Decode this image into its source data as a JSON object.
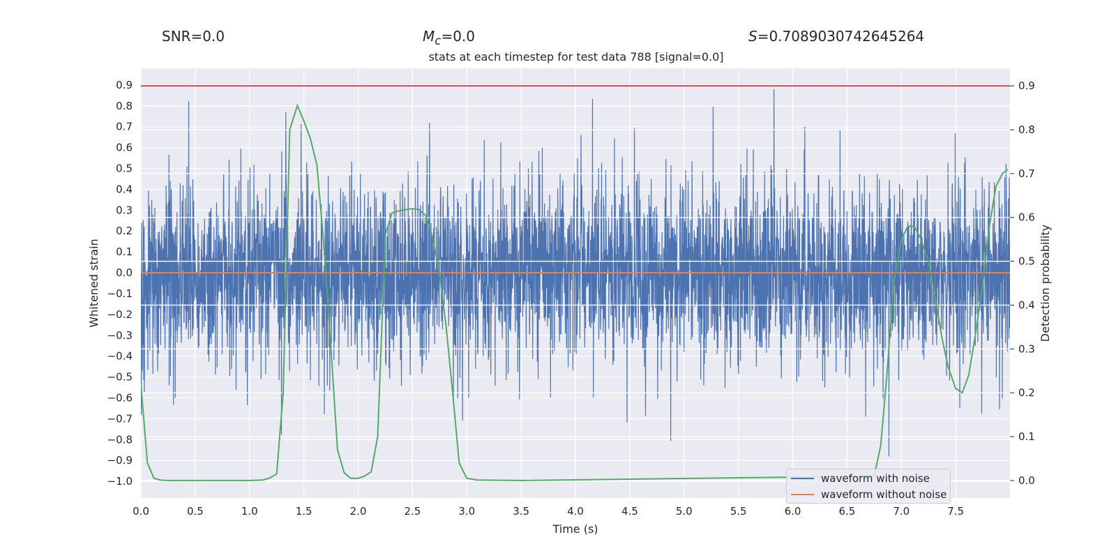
{
  "header": {
    "snr": "SNR=0.0",
    "mc_symbol": "M",
    "mc_sub": "c",
    "mc_value": "=0.0",
    "s_symbol": "S",
    "s_value": "=0.7089030742645264"
  },
  "chart_data": {
    "type": "line",
    "title": "stats at each timestep for test data 788 [signal=0.0]",
    "xlabel": "Time (s)",
    "ylabel": "Whitened strain",
    "y2label": "Detection probability",
    "xlim": [
      0.0,
      8.0
    ],
    "ylim": [
      -1.08,
      0.98
    ],
    "y2lim": [
      -0.04,
      0.94
    ],
    "xticks": [
      "0.0",
      "0.5",
      "1.0",
      "1.5",
      "2.0",
      "2.5",
      "3.0",
      "3.5",
      "4.0",
      "4.5",
      "5.0",
      "5.5",
      "6.0",
      "6.5",
      "7.0",
      "7.5"
    ],
    "yticks": [
      "0.9",
      "0.8",
      "0.7",
      "0.6",
      "0.5",
      "0.4",
      "0.3",
      "0.2",
      "0.1",
      "0.0",
      "-0.1",
      "-0.2",
      "-0.3",
      "-0.4",
      "-0.5",
      "-0.6",
      "-0.7",
      "-0.8",
      "-0.9",
      "-1.0"
    ],
    "y2ticks": [
      "0.9",
      "0.8",
      "0.7",
      "0.6",
      "0.5",
      "0.4",
      "0.3",
      "0.2",
      "0.1",
      "0.0"
    ],
    "threshold": 0.9,
    "series": [
      {
        "name": "waveform with noise",
        "axis": "left",
        "color": "#4c72b0",
        "description": "noise band, bulk about ±0.4, spikes to about ±0.87 (rendered procedurally)"
      },
      {
        "name": "waveform without noise",
        "axis": "left",
        "color": "#dd8452",
        "value": 0.0
      },
      {
        "name": "detection probability",
        "axis": "right",
        "color": "#55a868",
        "x": [
          0.0,
          0.06,
          0.12,
          0.18,
          0.25,
          0.5,
          1.0,
          1.12,
          1.18,
          1.25,
          1.31,
          1.37,
          1.44,
          1.5,
          1.56,
          1.62,
          1.68,
          1.75,
          1.81,
          1.87,
          1.93,
          2.0,
          2.06,
          2.12,
          2.18,
          2.25,
          2.31,
          2.37,
          2.5,
          2.56,
          2.62,
          2.68,
          2.75,
          2.81,
          2.87,
          2.93,
          3.0,
          3.1,
          3.5,
          6.75,
          6.81,
          6.87,
          6.93,
          7.0,
          7.06,
          7.12,
          7.18,
          7.25,
          7.31,
          7.37,
          7.43,
          7.5,
          7.56,
          7.62,
          7.68,
          7.75,
          7.81,
          7.87,
          7.93,
          7.98
        ],
        "y": [
          0.22,
          0.04,
          0.005,
          0.001,
          0.0,
          0.0,
          0.0,
          0.001,
          0.005,
          0.015,
          0.2,
          0.8,
          0.855,
          0.82,
          0.78,
          0.72,
          0.55,
          0.3,
          0.07,
          0.018,
          0.005,
          0.005,
          0.01,
          0.02,
          0.1,
          0.56,
          0.61,
          0.615,
          0.62,
          0.618,
          0.605,
          0.56,
          0.47,
          0.35,
          0.2,
          0.04,
          0.005,
          0.001,
          0.0,
          0.01,
          0.08,
          0.25,
          0.45,
          0.55,
          0.58,
          0.58,
          0.55,
          0.5,
          0.42,
          0.33,
          0.26,
          0.21,
          0.2,
          0.24,
          0.33,
          0.45,
          0.58,
          0.67,
          0.7,
          0.71
        ]
      }
    ],
    "legend": {
      "position": "bottom-right",
      "entries": [
        "waveform with noise",
        "waveform without noise"
      ]
    }
  }
}
